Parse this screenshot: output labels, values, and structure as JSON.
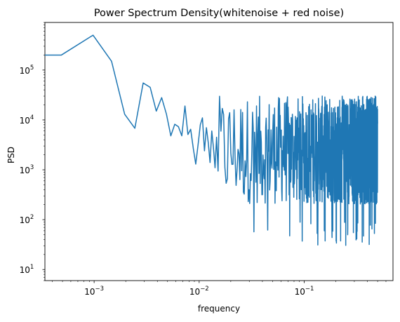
{
  "chart_data": {
    "type": "line",
    "title": "Power Spectrum Density(whitenoise + red noise)",
    "xlabel": "frequency",
    "ylabel": "PSD",
    "xscale": "log",
    "yscale": "log",
    "xlim": [
      0.00034,
      0.7
    ],
    "ylim": [
      6,
      900000
    ],
    "x_major_ticks": [
      {
        "value": 0.001,
        "base": "10",
        "exp": "−3"
      },
      {
        "value": 0.01,
        "base": "10",
        "exp": "−2"
      },
      {
        "value": 0.1,
        "base": "10",
        "exp": "−1"
      }
    ],
    "y_major_ticks": [
      {
        "value": 10,
        "base": "10",
        "exp": "1"
      },
      {
        "value": 100,
        "base": "10",
        "exp": "2"
      },
      {
        "value": 1000,
        "base": "10",
        "exp": "3"
      },
      {
        "value": 10000,
        "base": "10",
        "exp": "4"
      },
      {
        "value": 100000,
        "base": "10",
        "exp": "5"
      }
    ],
    "color": "#1f77b4",
    "grid": false,
    "series": [
      {
        "x": [
          0.000488,
          0.000977,
          0.001465,
          0.001953,
          0.002441,
          0.00293,
          0.003418,
          0.003906,
          0.004395,
          0.004883,
          0.005371,
          0.005859,
          0.006348,
          0.006836,
          0.007324,
          0.007813,
          0.008301,
          0.008789,
          0.009277,
          0.009766,
          0.010254,
          0.010742,
          0.01123,
          0.011719,
          0.012207,
          0.012695,
          0.013184,
          0.013672,
          0.01416,
          0.014648
        ],
        "y": [
          200000,
          500000,
          150000,
          13000,
          6800,
          55000,
          45000,
          15000,
          28000,
          13000,
          4800,
          8200,
          7300,
          4800,
          19000,
          5100,
          6500,
          2700,
          1300,
          3200,
          8000,
          11000,
          2400,
          7000,
          3500,
          1400,
          6000,
          2800,
          1100,
          4500
        ]
      }
    ]
  }
}
